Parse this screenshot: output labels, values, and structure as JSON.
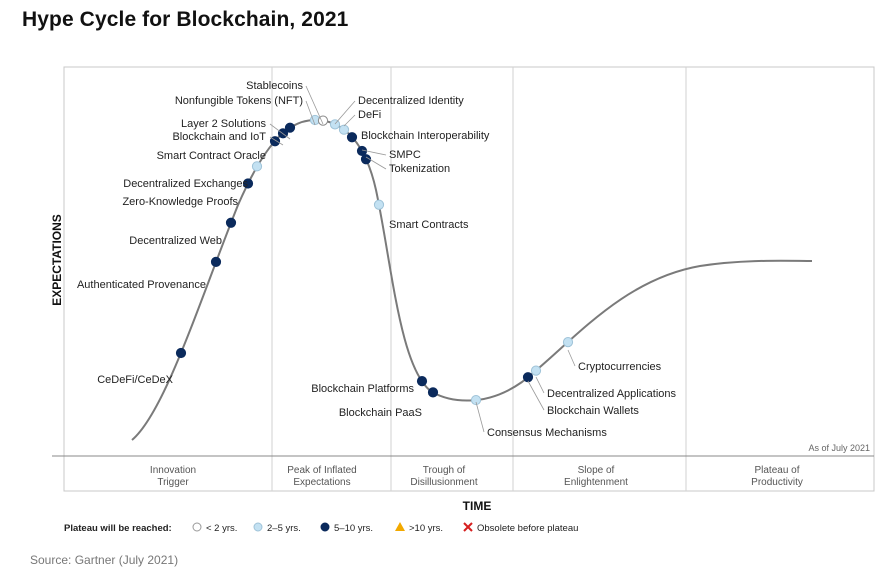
{
  "title": "Hype Cycle for Blockchain, 2021",
  "source": "Source: Gartner (July 2021)",
  "chart_data": {
    "type": "line",
    "title": "Hype Cycle for Blockchain, 2021",
    "xlabel": "TIME",
    "ylabel": "EXPECTATIONS",
    "as_of": "As of July 2021",
    "phases": [
      [
        "Innovation",
        "Trigger"
      ],
      [
        "Peak of Inflated",
        "Expectations"
      ],
      [
        "Trough of",
        "Disillusionment"
      ],
      [
        "Slope of",
        "Enlightenment"
      ],
      [
        "Plateau of",
        "Productivity"
      ]
    ],
    "legend": {
      "title": "Plateau will be reached:",
      "items": [
        {
          "symbol": "circle-white",
          "label": "< 2 yrs."
        },
        {
          "symbol": "circle-light",
          "label": "2–5 yrs."
        },
        {
          "symbol": "circle-dark",
          "label": "5–10 yrs."
        },
        {
          "symbol": "triangle",
          "label": ">10 yrs."
        },
        {
          "symbol": "cross",
          "label": "Obsolete before plateau"
        }
      ]
    },
    "colors": {
      "curve": "#7a7a7a",
      "dark": "#0b2a5c",
      "light": "#c3e1f2",
      "white": "#ffffff",
      "triangle": "#f2a900",
      "cross": "#d62020"
    },
    "technologies": [
      {
        "name": "CeDeFi/CeDeX",
        "category": "5–10 yrs."
      },
      {
        "name": "Authenticated Provenance",
        "category": "5–10 yrs."
      },
      {
        "name": "Decentralized Web",
        "category": "5–10 yrs."
      },
      {
        "name": "Zero-Knowledge Proofs",
        "category": "5–10 yrs."
      },
      {
        "name": "Decentralized Exchanges",
        "category": "2–5 yrs."
      },
      {
        "name": "Smart Contract Oracle",
        "category": "5–10 yrs."
      },
      {
        "name": "Blockchain and IoT",
        "category": "5–10 yrs."
      },
      {
        "name": "Layer 2 Solutions",
        "category": "5–10 yrs."
      },
      {
        "name": "Nonfungible Tokens (NFT)",
        "category": "2–5 yrs."
      },
      {
        "name": "Stablecoins",
        "category": "< 2 yrs."
      },
      {
        "name": "Decentralized Identity",
        "category": "2–5 yrs."
      },
      {
        "name": "DeFi",
        "category": "2–5 yrs."
      },
      {
        "name": "Blockchain Interoperability",
        "category": "5–10 yrs."
      },
      {
        "name": "SMPC",
        "category": "5–10 yrs."
      },
      {
        "name": "Tokenization",
        "category": "5–10 yrs."
      },
      {
        "name": "Smart Contracts",
        "category": "2–5 yrs."
      },
      {
        "name": "Blockchain Platforms",
        "category": "5–10 yrs."
      },
      {
        "name": "Blockchain PaaS",
        "category": "5–10 yrs."
      },
      {
        "name": "Consensus Mechanisms",
        "category": "2–5 yrs."
      },
      {
        "name": "Decentralized Applications",
        "category": "2–5 yrs."
      },
      {
        "name": "Blockchain Wallets",
        "category": "5–10 yrs."
      },
      {
        "name": "Cryptocurrencies",
        "category": "2–5 yrs."
      }
    ]
  }
}
